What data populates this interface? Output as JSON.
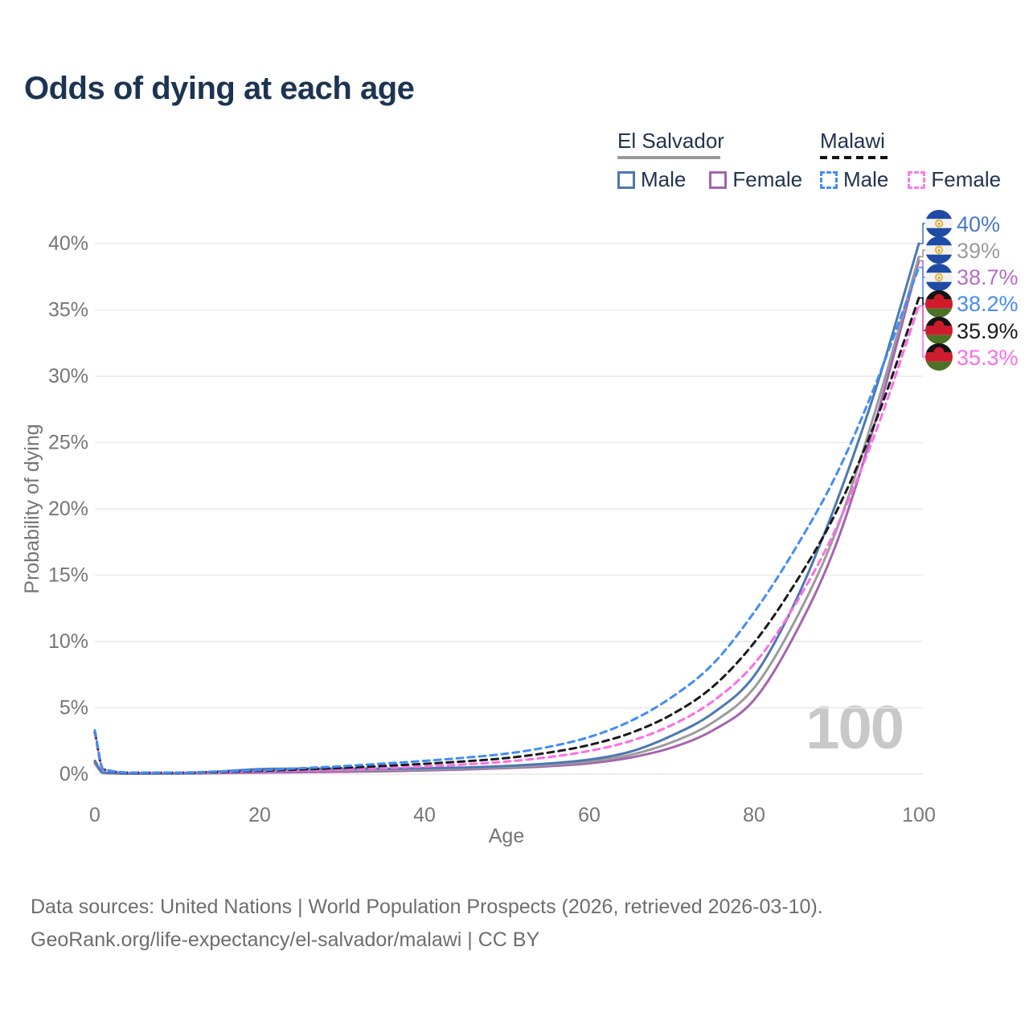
{
  "title": "Odds of dying at each age",
  "watermark": "100",
  "legend": {
    "groups": [
      {
        "country": "El Salvador",
        "underline_style": "solid",
        "underline_color": "#9b9b9b",
        "items": [
          {
            "label": "Male",
            "color": "#4b78b3",
            "dash": false
          },
          {
            "label": "Female",
            "color": "#a563ae",
            "dash": false
          }
        ]
      },
      {
        "country": "Malawi",
        "underline_style": "dashed",
        "underline_color": "#141414",
        "items": [
          {
            "label": "Male",
            "color": "#418df5",
            "dash": true
          },
          {
            "label": "Female",
            "color": "#fb7ae8",
            "dash": true
          }
        ]
      }
    ]
  },
  "y_axis": {
    "title": "Probability of dying",
    "ticks": [
      "0%",
      "5%",
      "10%",
      "15%",
      "20%",
      "25%",
      "30%",
      "35%",
      "40%"
    ]
  },
  "x_axis": {
    "title": "Age",
    "ticks": [
      0,
      20,
      40,
      60,
      80,
      100
    ]
  },
  "end_labels": [
    {
      "text": "40%",
      "value": 40.0,
      "color": "#4a77c0",
      "flag": "el-salvador",
      "series": "El Salvador Male"
    },
    {
      "text": "39%",
      "value": 39.0,
      "color": "#9b9b9b",
      "flag": "el-salvador",
      "series": "El Salvador Both sexes"
    },
    {
      "text": "38.7%",
      "value": 38.7,
      "color": "#b76ec2",
      "flag": "el-salvador",
      "series": "El Salvador Female"
    },
    {
      "text": "38.2%",
      "value": 38.2,
      "color": "#488bf3",
      "flag": "malawi",
      "series": "Malawi Male"
    },
    {
      "text": "35.9%",
      "value": 35.9,
      "color": "#1a1a1a",
      "flag": "malawi",
      "series": "Malawi Both sexes"
    },
    {
      "text": "35.3%",
      "value": 35.3,
      "color": "#fb6ee4",
      "flag": "malawi",
      "series": "Malawi Female"
    }
  ],
  "footer": {
    "line1": "Data sources: United Nations | World Population Prospects (2026, retrieved 2026-03-10).",
    "line2": "GeoRank.org/life-expectancy/el-salvador/malawi | CC BY"
  },
  "chart_data": {
    "type": "line",
    "title": "Odds of dying at each age",
    "xlabel": "Age",
    "ylabel": "Probability of dying",
    "xlim": [
      0,
      100
    ],
    "ylim": [
      0,
      40
    ],
    "y_unit": "%",
    "grid": true,
    "legend_position": "top-right",
    "x": [
      0,
      1,
      5,
      10,
      15,
      20,
      25,
      30,
      35,
      40,
      45,
      50,
      55,
      60,
      65,
      70,
      75,
      80,
      85,
      90,
      95,
      100
    ],
    "series": [
      {
        "name": "El Salvador Male",
        "color": "#4b78b3",
        "style": "solid",
        "end_label": "40%",
        "values": [
          1.0,
          0.12,
          0.05,
          0.06,
          0.2,
          0.38,
          0.42,
          0.42,
          0.42,
          0.45,
          0.5,
          0.62,
          0.8,
          1.1,
          1.7,
          2.9,
          4.6,
          7.4,
          13.0,
          20.5,
          29.5,
          40.0
        ]
      },
      {
        "name": "El Salvador Both sexes",
        "color": "#9b9b9b",
        "style": "solid",
        "end_label": "39%",
        "values": [
          0.9,
          0.1,
          0.04,
          0.05,
          0.13,
          0.25,
          0.28,
          0.3,
          0.32,
          0.36,
          0.43,
          0.53,
          0.7,
          0.95,
          1.45,
          2.4,
          3.9,
          6.5,
          11.6,
          18.4,
          28.0,
          39.0
        ]
      },
      {
        "name": "El Salvador Female",
        "color": "#a563ae",
        "style": "solid",
        "end_label": "38.7%",
        "values": [
          0.8,
          0.09,
          0.04,
          0.04,
          0.08,
          0.12,
          0.15,
          0.18,
          0.22,
          0.28,
          0.36,
          0.46,
          0.6,
          0.82,
          1.25,
          2.0,
          3.3,
          5.6,
          10.6,
          17.4,
          27.2,
          38.7
        ]
      },
      {
        "name": "Malawi Male",
        "color": "#418df5",
        "style": "dashed",
        "end_label": "38.2%",
        "values": [
          3.3,
          0.4,
          0.12,
          0.12,
          0.2,
          0.3,
          0.45,
          0.6,
          0.8,
          1.0,
          1.25,
          1.55,
          2.05,
          2.8,
          4.0,
          5.8,
          8.3,
          12.2,
          17.0,
          22.6,
          29.8,
          38.2
        ]
      },
      {
        "name": "Malawi Both sexes",
        "color": "#1a1a1a",
        "style": "dashed",
        "end_label": "35.9%",
        "values": [
          3.2,
          0.38,
          0.11,
          0.11,
          0.17,
          0.25,
          0.35,
          0.47,
          0.62,
          0.78,
          0.97,
          1.22,
          1.62,
          2.2,
          3.1,
          4.5,
          6.6,
          9.9,
          14.4,
          19.8,
          27.0,
          35.9
        ]
      },
      {
        "name": "Malawi Female",
        "color": "#fb6ee4",
        "style": "dashed",
        "end_label": "35.3%",
        "values": [
          3.1,
          0.36,
          0.1,
          0.1,
          0.15,
          0.2,
          0.27,
          0.35,
          0.45,
          0.58,
          0.74,
          0.95,
          1.28,
          1.75,
          2.5,
          3.7,
          5.5,
          8.3,
          12.8,
          18.6,
          26.2,
          35.3
        ]
      }
    ]
  }
}
